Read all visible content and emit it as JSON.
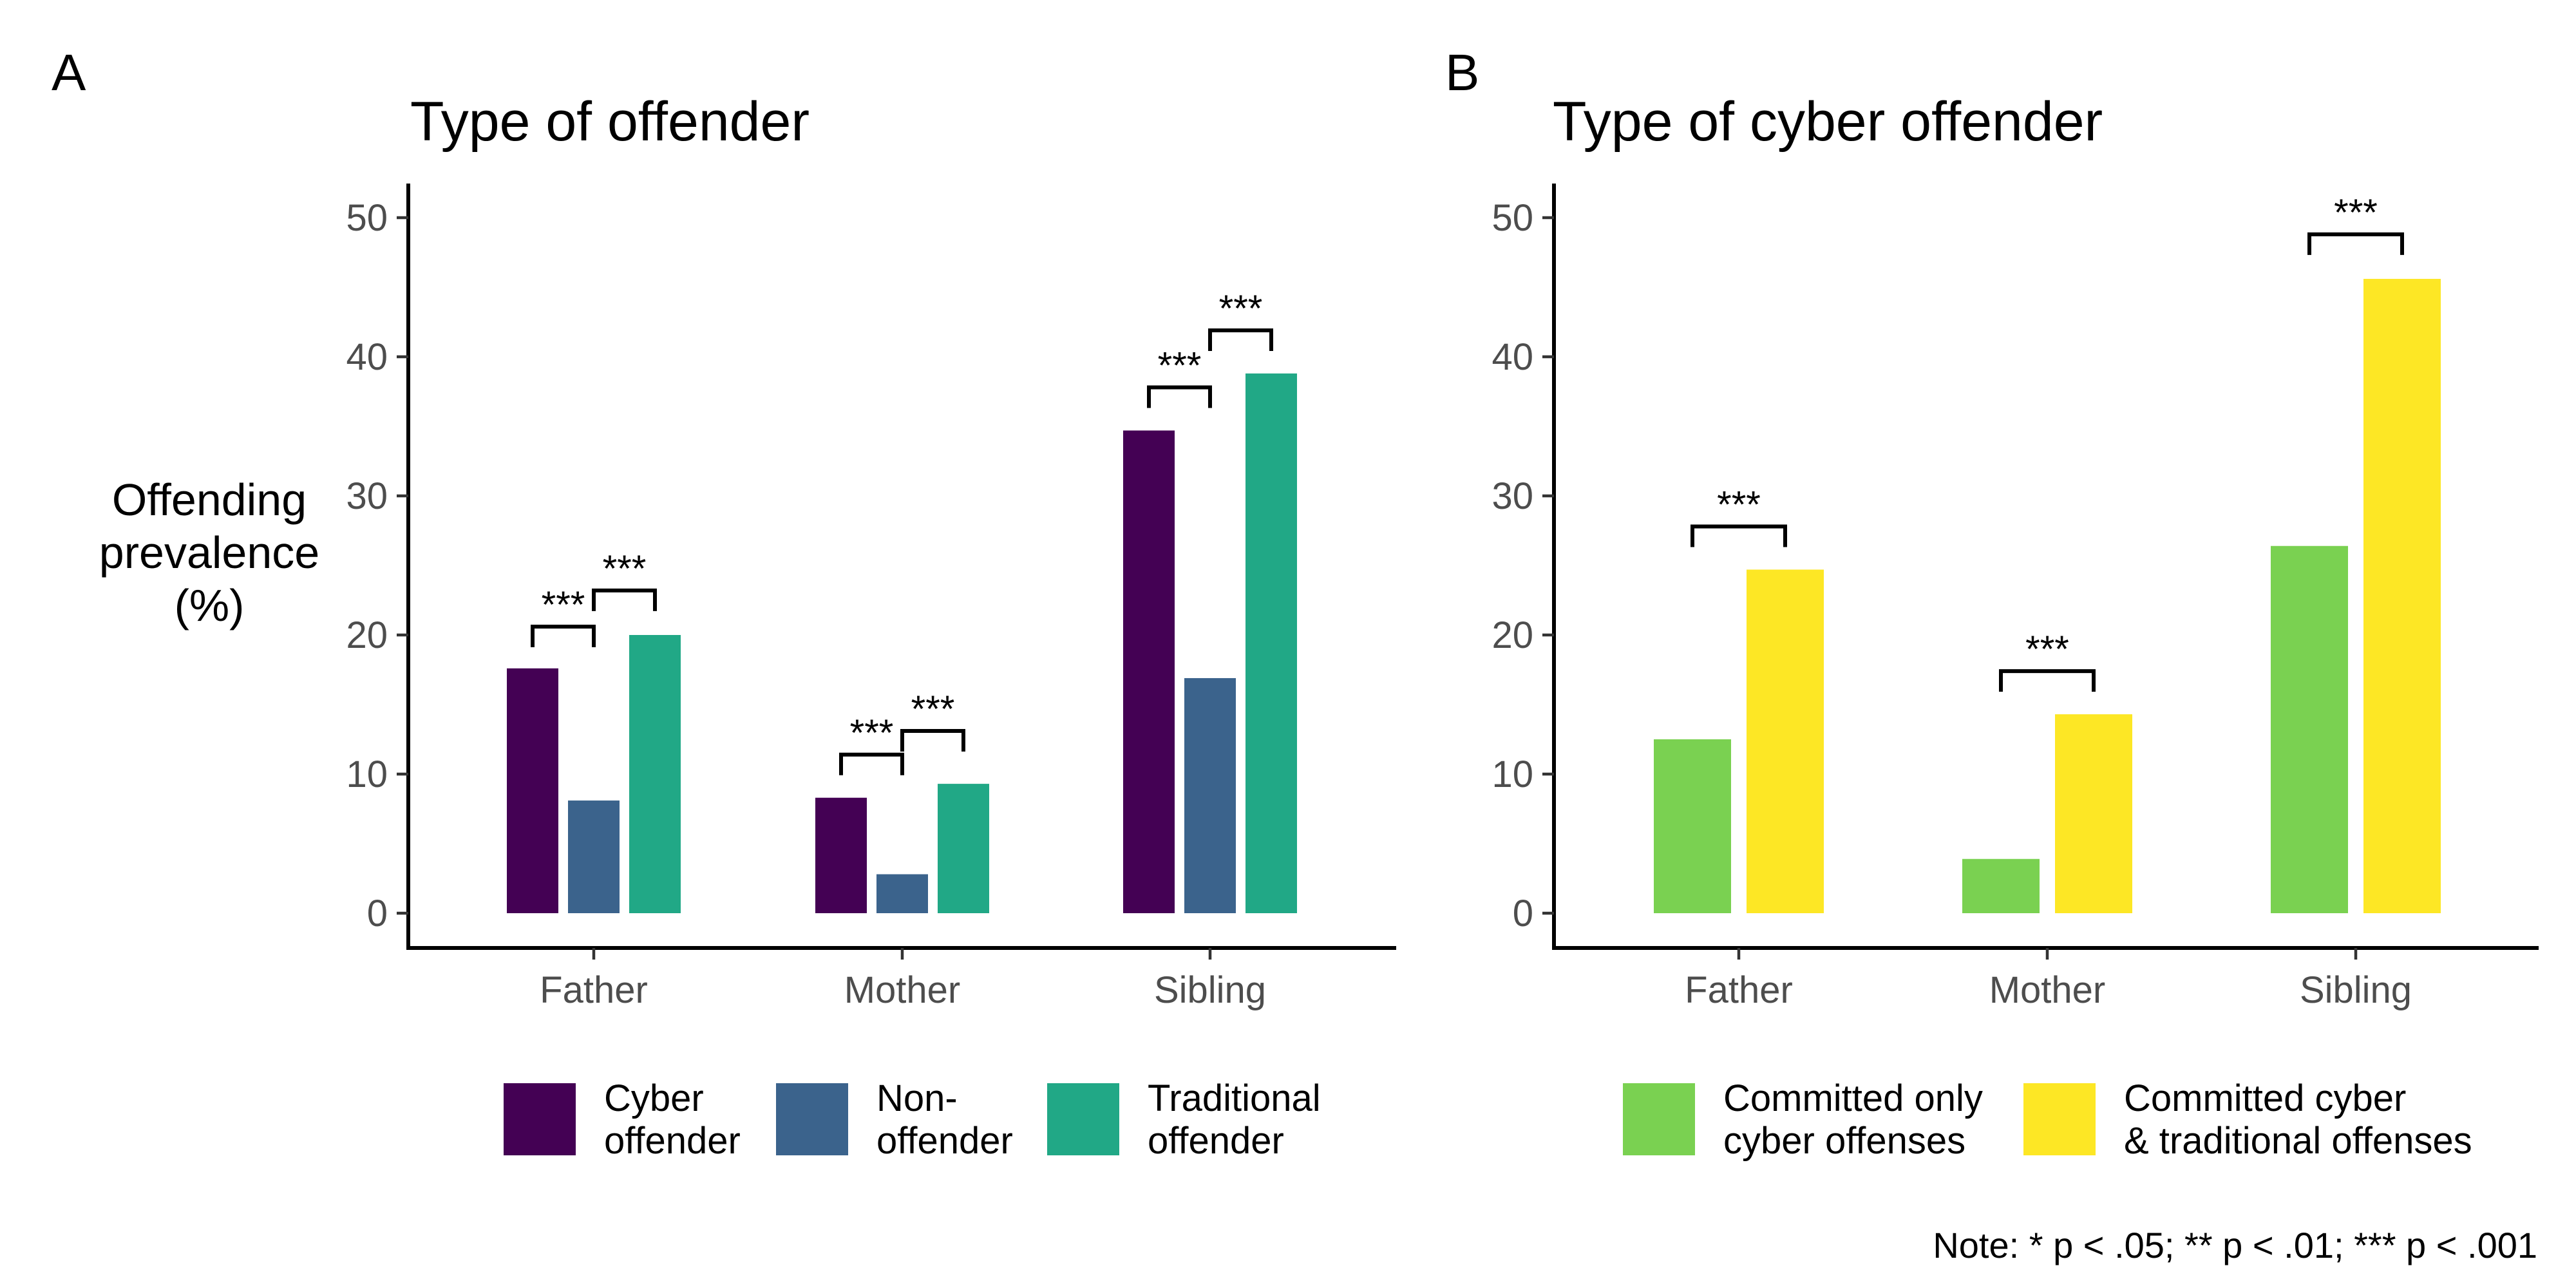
{
  "note": "Note: * p < .05; ** p < .01; *** p < .001",
  "colors": {
    "cyber_offender": "#440154",
    "non_offender": "#3B638C",
    "traditional_offender": "#21A886",
    "committed_only_cyber": "#7AD151",
    "committed_cyber_traditional": "#FDE725"
  },
  "chart_data": [
    {
      "panel": "A",
      "type": "bar",
      "title": "Type of offender",
      "xlabel": "",
      "ylabel": [
        "Offending",
        "prevalence",
        "(%)"
      ],
      "ylim": [
        0,
        52
      ],
      "yticks": [
        0,
        10,
        20,
        30,
        40,
        50
      ],
      "grid": false,
      "legend_position": "bottom",
      "categories": [
        "Father",
        "Mother",
        "Sibling"
      ],
      "series": [
        {
          "name": [
            "Cyber",
            "offender"
          ],
          "color": "#440154",
          "values": [
            17.6,
            8.3,
            34.7
          ]
        },
        {
          "name": [
            "Non-",
            "offender"
          ],
          "color": "#3B638C",
          "values": [
            8.1,
            2.8,
            16.9
          ]
        },
        {
          "name": [
            "Traditional",
            "offender"
          ],
          "color": "#21A886",
          "values": [
            20.0,
            9.3,
            38.8
          ]
        }
      ],
      "significance": [
        {
          "category": 0,
          "from_series": 0,
          "to_series": 1,
          "y": 20.6,
          "label": "***"
        },
        {
          "category": 0,
          "from_series": 1,
          "to_series": 2,
          "y": 23.2,
          "label": "***"
        },
        {
          "category": 1,
          "from_series": 0,
          "to_series": 1,
          "y": 11.4,
          "label": "***"
        },
        {
          "category": 1,
          "from_series": 1,
          "to_series": 2,
          "y": 13.1,
          "label": "***"
        },
        {
          "category": 2,
          "from_series": 0,
          "to_series": 1,
          "y": 37.8,
          "label": "***"
        },
        {
          "category": 2,
          "from_series": 1,
          "to_series": 2,
          "y": 41.9,
          "label": "***"
        }
      ]
    },
    {
      "panel": "B",
      "type": "bar",
      "title": "Type of cyber offender",
      "xlabel": "",
      "ylabel": [],
      "ylim": [
        0,
        52
      ],
      "yticks": [
        0,
        10,
        20,
        30,
        40,
        50
      ],
      "grid": false,
      "legend_position": "bottom",
      "categories": [
        "Father",
        "Mother",
        "Sibling"
      ],
      "series": [
        {
          "name": [
            "Committed only",
            "cyber offenses"
          ],
          "color": "#7AD151",
          "values": [
            12.5,
            3.9,
            26.4
          ]
        },
        {
          "name": [
            "Committed cyber",
            "& traditional offenses"
          ],
          "color": "#FDE725",
          "values": [
            24.7,
            14.3,
            45.6
          ]
        }
      ],
      "significance": [
        {
          "category": 0,
          "from_series": 0,
          "to_series": 1,
          "y": 27.8,
          "label": "***"
        },
        {
          "category": 1,
          "from_series": 0,
          "to_series": 1,
          "y": 17.4,
          "label": "***"
        },
        {
          "category": 2,
          "from_series": 0,
          "to_series": 1,
          "y": 48.8,
          "label": "***"
        }
      ]
    }
  ]
}
